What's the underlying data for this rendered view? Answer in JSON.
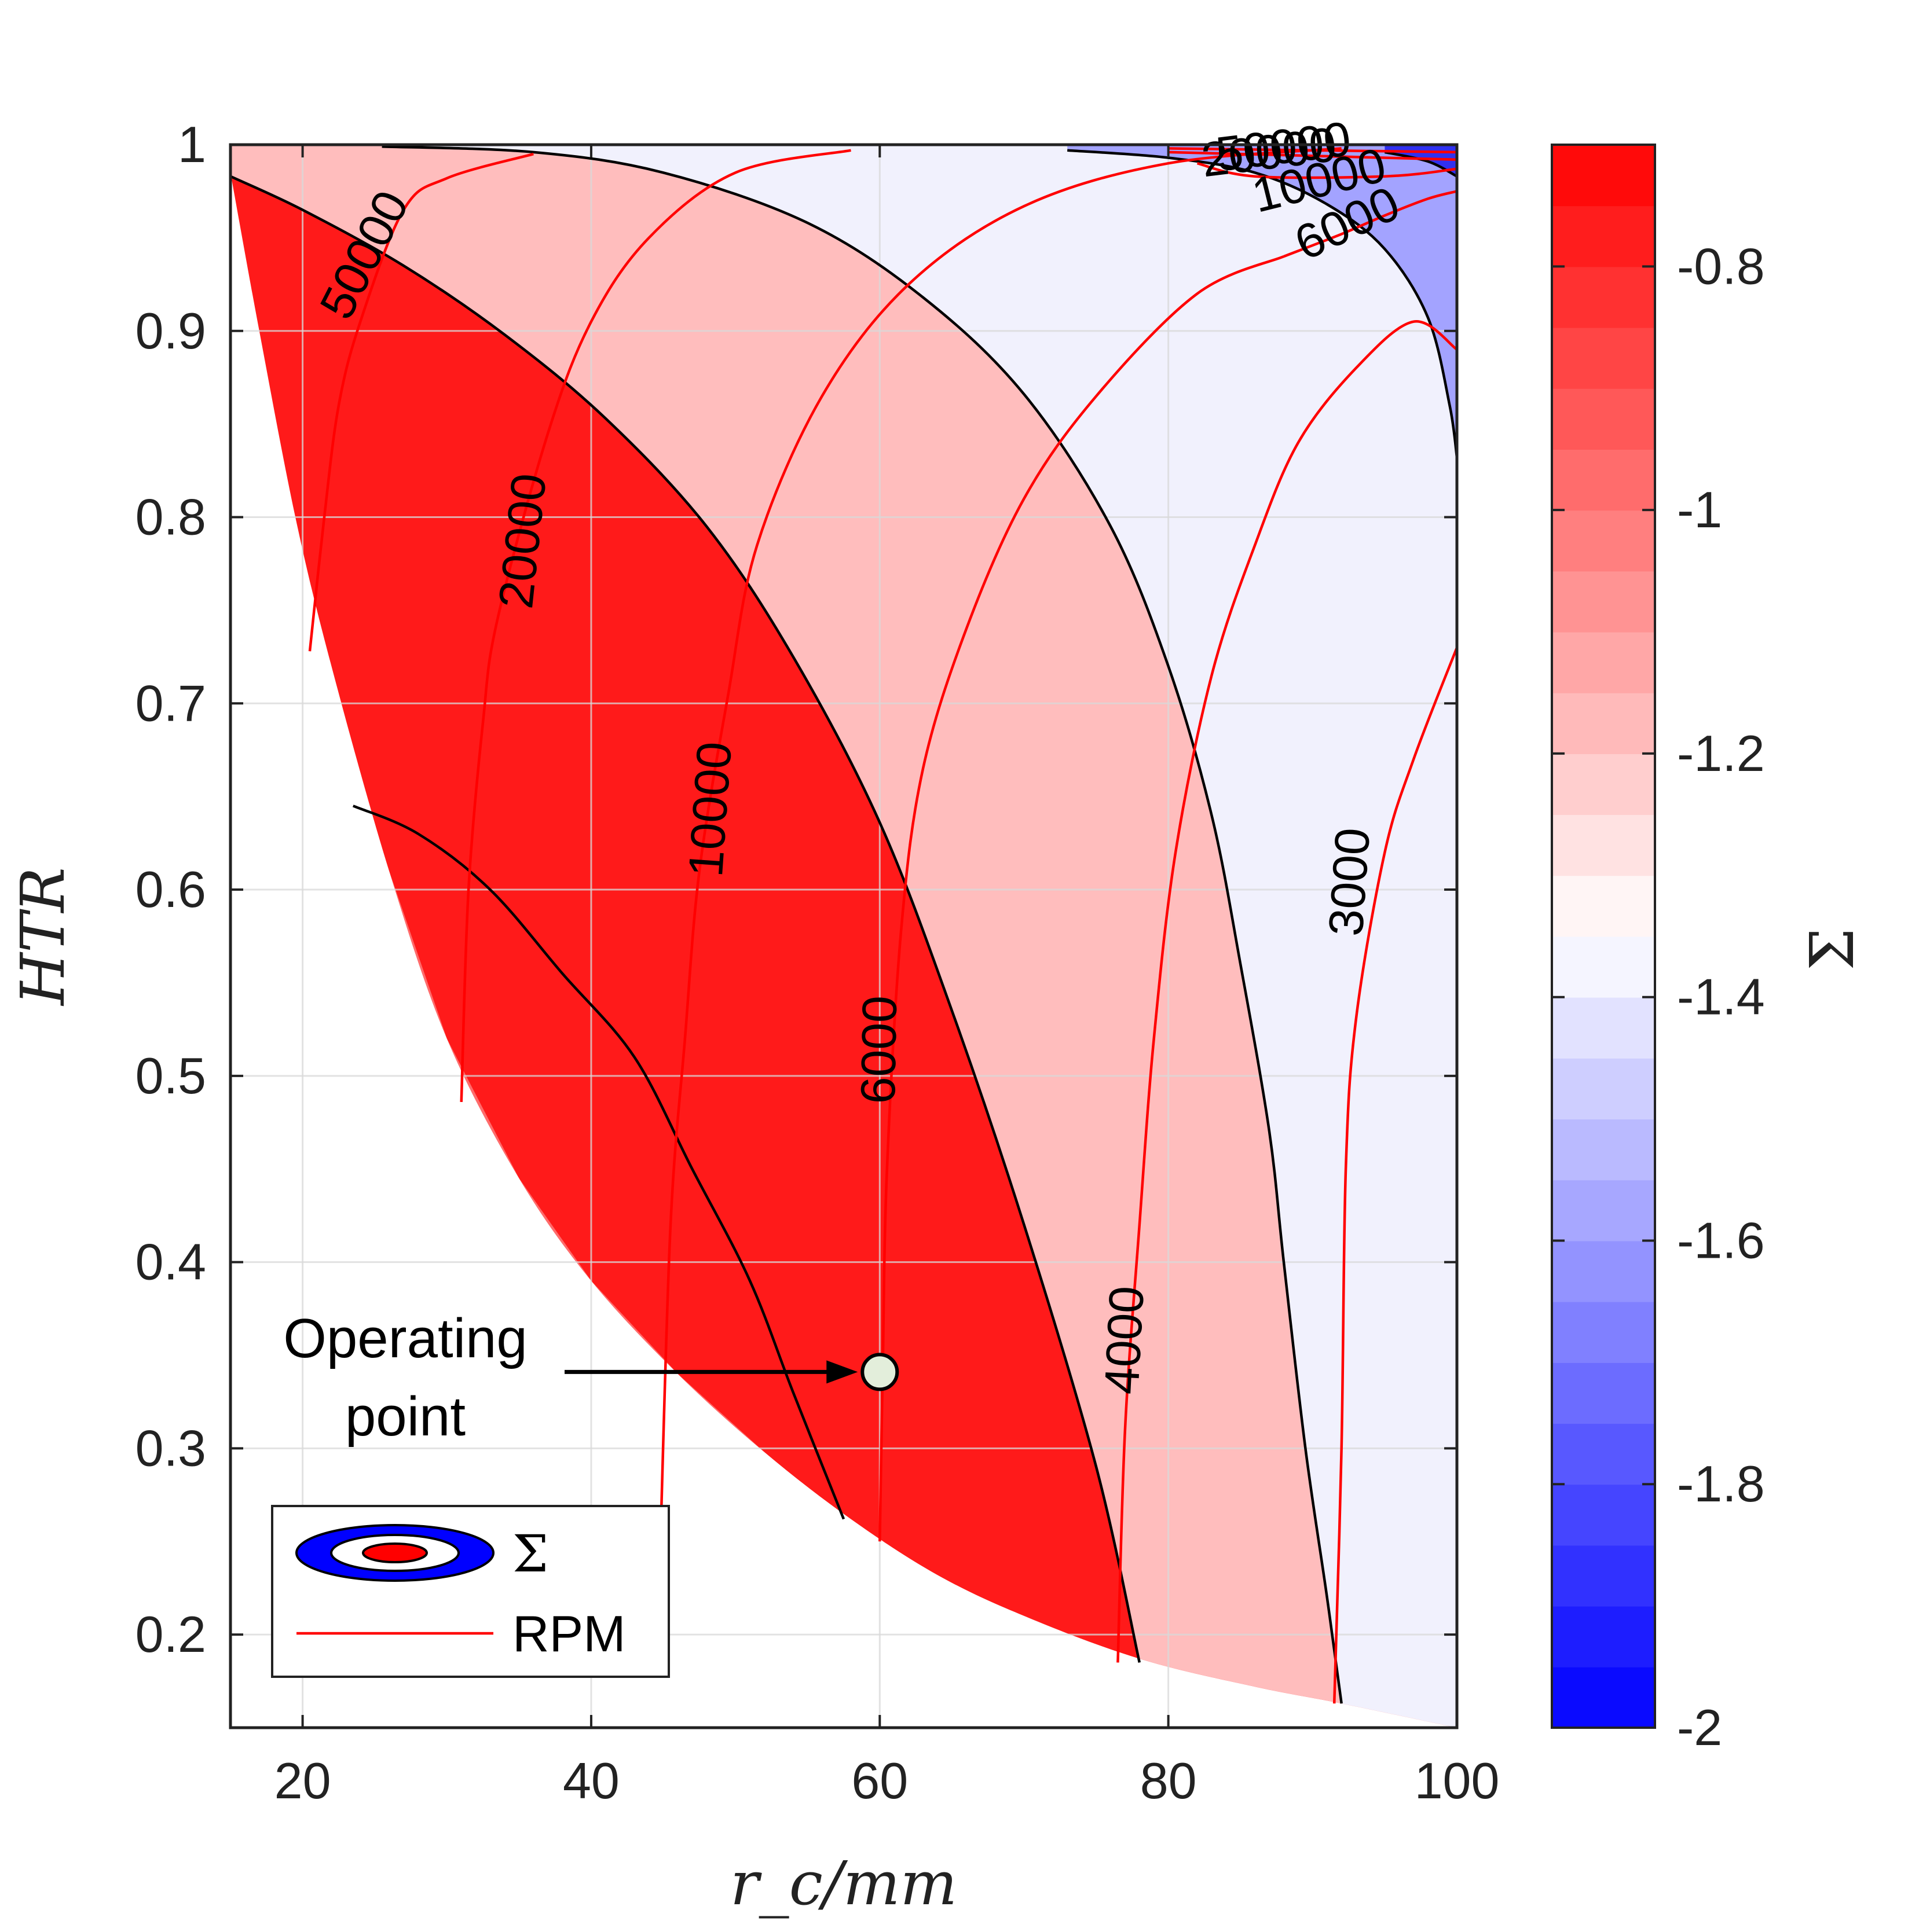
{
  "chart_data": {
    "type": "contour",
    "xlabel": "r_c/mm",
    "ylabel": "HTR",
    "xlim": [
      15,
      100
    ],
    "ylim": [
      0.15,
      1.0
    ],
    "x_ticks": [
      "20",
      "40",
      "60",
      "80",
      "100"
    ],
    "y_ticks": [
      "0.2",
      "0.3",
      "0.4",
      "0.5",
      "0.6",
      "0.7",
      "0.8",
      "0.9",
      "1"
    ],
    "grid": true,
    "colorbar": {
      "label": "Σ",
      "range": [
        -2.0,
        -0.7
      ],
      "ticks": [
        "-0.8",
        "-1",
        "-1.2",
        "-1.4",
        "-1.6",
        "-1.8",
        "-2"
      ],
      "colors": {
        "low": "#0000ff",
        "mid": "#ffffff",
        "high": "#ff0000"
      }
    },
    "sigma_levels": [
      {
        "name": "level-1",
        "color": "#ff1a1a"
      },
      {
        "name": "level-2",
        "color": "#ff6b6b"
      },
      {
        "name": "level-3",
        "color": "#ffbdbd"
      },
      {
        "name": "level-4",
        "color": "#f1f1fd"
      },
      {
        "name": "level-5",
        "color": "#a3a3ff"
      },
      {
        "name": "level-6",
        "color": "#3030f0"
      }
    ],
    "sigma_boundaries": [
      {
        "name": "boundary-1",
        "points": [
          [
            23.5,
            0.645
          ],
          [
            28,
            0.63
          ],
          [
            33,
            0.6
          ],
          [
            38,
            0.555
          ],
          [
            43,
            0.51
          ],
          [
            47,
            0.45
          ],
          [
            51,
            0.39
          ],
          [
            54,
            0.33
          ],
          [
            57.5,
            0.262
          ]
        ]
      },
      {
        "name": "boundary-2",
        "points": [
          [
            15,
            0.983
          ],
          [
            20,
            0.965
          ],
          [
            27,
            0.935
          ],
          [
            34,
            0.898
          ],
          [
            41,
            0.853
          ],
          [
            48,
            0.795
          ],
          [
            54,
            0.725
          ],
          [
            60,
            0.636
          ],
          [
            65,
            0.535
          ],
          [
            70,
            0.42
          ],
          [
            75,
            0.29
          ],
          [
            78,
            0.185
          ]
        ]
      },
      {
        "name": "boundary-3",
        "points": [
          [
            25.5,
            0.999
          ],
          [
            36,
            0.996
          ],
          [
            45,
            0.985
          ],
          [
            55,
            0.958
          ],
          [
            63,
            0.918
          ],
          [
            70,
            0.866
          ],
          [
            76,
            0.795
          ],
          [
            80,
            0.72
          ],
          [
            83,
            0.64
          ],
          [
            85,
            0.56
          ],
          [
            87,
            0.47
          ],
          [
            88,
            0.4
          ],
          [
            89.5,
            0.3
          ],
          [
            91,
            0.22
          ],
          [
            92,
            0.163
          ]
        ]
      },
      {
        "name": "boundary-4",
        "points": [
          [
            73,
            0.997
          ],
          [
            80,
            0.993
          ],
          [
            86,
            0.985
          ],
          [
            91,
            0.968
          ],
          [
            95,
            0.944
          ],
          [
            98,
            0.907
          ],
          [
            99.5,
            0.86
          ],
          [
            100,
            0.832
          ]
        ]
      },
      {
        "name": "boundary-5",
        "points": [
          [
            95,
            0.996
          ],
          [
            98,
            0.991
          ],
          [
            100,
            0.983
          ]
        ]
      }
    ],
    "rpm_contours": [
      {
        "label": "50000",
        "label_at": [
          24.5,
          0.94
        ],
        "points": [
          [
            20.5,
            0.728
          ],
          [
            21.5,
            0.8
          ],
          [
            22.5,
            0.86
          ],
          [
            24,
            0.905
          ],
          [
            27,
            0.965
          ],
          [
            30,
            0.982
          ],
          [
            36,
            0.995
          ]
        ]
      },
      {
        "label": "20000",
        "label_at": [
          35.5,
          0.787
        ],
        "points": [
          [
            31,
            0.486
          ],
          [
            31.5,
            0.6
          ],
          [
            32.5,
            0.69
          ],
          [
            33.5,
            0.745
          ],
          [
            37,
            0.845
          ],
          [
            40,
            0.905
          ],
          [
            44,
            0.95
          ],
          [
            50,
            0.985
          ],
          [
            58,
            0.997
          ]
        ]
      },
      {
        "label": "10000",
        "label_at": [
          48.5,
          0.643
        ],
        "points": [
          [
            44.8,
            0.25
          ],
          [
            45.5,
            0.42
          ],
          [
            46.5,
            0.52
          ],
          [
            47.5,
            0.61
          ],
          [
            49.5,
            0.705
          ],
          [
            51.5,
            0.785
          ],
          [
            56,
            0.865
          ],
          [
            62,
            0.925
          ],
          [
            70,
            0.967
          ],
          [
            80,
            0.99
          ],
          [
            92,
            0.998
          ]
        ]
      },
      {
        "label": "6000",
        "label_at": [
          60.2,
          0.514
        ],
        "points": [
          [
            60,
            0.25
          ],
          [
            60.2,
            0.34
          ],
          [
            60.5,
            0.45
          ],
          [
            61.5,
            0.58
          ],
          [
            63,
            0.665
          ],
          [
            66,
            0.74
          ],
          [
            70,
            0.81
          ],
          [
            75,
            0.865
          ],
          [
            82,
            0.92
          ],
          [
            88,
            0.94
          ]
        ]
      },
      {
        "label": "4000",
        "label_at": [
          77.2,
          0.358
        ],
        "points": [
          [
            76.5,
            0.185
          ],
          [
            77,
            0.31
          ],
          [
            78,
            0.42
          ],
          [
            79,
            0.52
          ],
          [
            80.5,
            0.62
          ],
          [
            83,
            0.715
          ],
          [
            86,
            0.785
          ],
          [
            89,
            0.84
          ],
          [
            93,
            0.88
          ],
          [
            97,
            0.905
          ],
          [
            100,
            0.89
          ]
        ]
      },
      {
        "label": "3000",
        "label_at": [
          92.8,
          0.604
        ],
        "points": [
          [
            91.5,
            0.163
          ],
          [
            92,
            0.3
          ],
          [
            92.3,
            0.45
          ],
          [
            93,
            0.53
          ],
          [
            95,
            0.62
          ],
          [
            97,
            0.67
          ],
          [
            100,
            0.73
          ]
        ]
      },
      {
        "label": "6000",
        "label_at": [
          92.5,
          0.956
        ],
        "points": [
          [
            88,
            0.94
          ],
          [
            92,
            0.952
          ],
          [
            95,
            0.962
          ],
          [
            98,
            0.971
          ],
          [
            100,
            0.975
          ]
        ]
      },
      {
        "label": "10000",
        "label_at": [
          90.5,
          0.979
        ],
        "points": [
          [
            82,
            0.99
          ],
          [
            86,
            0.983
          ],
          [
            95,
            0.983
          ],
          [
            100,
            0.987
          ]
        ]
      },
      {
        "label": "20000",
        "label_at": [
          87,
          0.994
        ],
        "points": [
          [
            80,
            0.996
          ],
          [
            90,
            0.994
          ],
          [
            100,
            0.992
          ]
        ]
      },
      {
        "label": "50000",
        "label_at": [
          88,
          0.997
        ],
        "points": [
          [
            80,
            0.998
          ],
          [
            90,
            0.997
          ],
          [
            100,
            0.996
          ]
        ]
      }
    ],
    "operating_point": {
      "x": 60,
      "y": 0.341,
      "label": "Operating point"
    },
    "legend": {
      "position": "bottom-left",
      "entries": [
        {
          "label": "Σ",
          "kind": "filled-contour"
        },
        {
          "label": "RPM",
          "kind": "line",
          "color": "#ff0000"
        }
      ]
    }
  },
  "annotations": {
    "operating_line1": "Operating",
    "operating_line2": "point"
  },
  "colors": {
    "rpm_line": "#ff0000",
    "boundary_line": "#000000",
    "grid": "#d9d9d9",
    "axis": "#222222"
  }
}
